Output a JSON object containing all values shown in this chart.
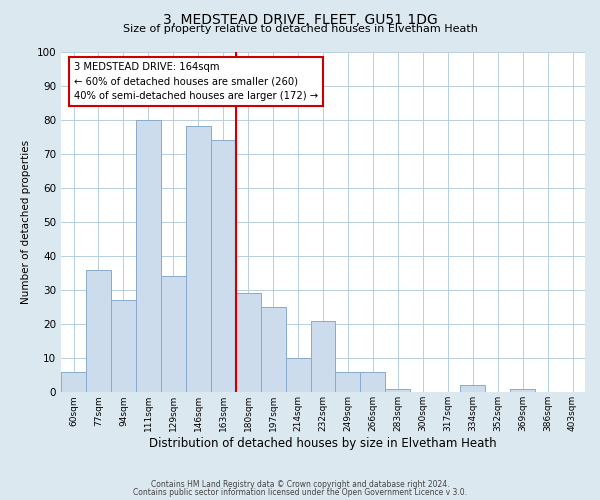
{
  "title": "3, MEDSTEAD DRIVE, FLEET, GU51 1DG",
  "subtitle": "Size of property relative to detached houses in Elvetham Heath",
  "xlabel": "Distribution of detached houses by size in Elvetham Heath",
  "ylabel": "Number of detached properties",
  "footer_line1": "Contains HM Land Registry data © Crown copyright and database right 2024.",
  "footer_line2": "Contains public sector information licensed under the Open Government Licence v 3.0.",
  "bin_labels": [
    "60sqm",
    "77sqm",
    "94sqm",
    "111sqm",
    "129sqm",
    "146sqm",
    "163sqm",
    "180sqm",
    "197sqm",
    "214sqm",
    "232sqm",
    "249sqm",
    "266sqm",
    "283sqm",
    "300sqm",
    "317sqm",
    "334sqm",
    "352sqm",
    "369sqm",
    "386sqm",
    "403sqm"
  ],
  "bar_heights": [
    6,
    36,
    27,
    80,
    34,
    78,
    74,
    29,
    25,
    10,
    21,
    6,
    6,
    1,
    0,
    0,
    2,
    0,
    1,
    0,
    0
  ],
  "bar_color": "#ccdcec",
  "bar_edge_color": "#88aacc",
  "property_line_color": "#cc0000",
  "property_line_label": "163sqm",
  "annotation_title": "3 MEDSTEAD DRIVE: 164sqm",
  "annotation_line1": "← 60% of detached houses are smaller (260)",
  "annotation_line2": "40% of semi-detached houses are larger (172) →",
  "annotation_box_facecolor": "#ffffff",
  "annotation_box_edgecolor": "#cc0000",
  "ylim": [
    0,
    100
  ],
  "yticks": [
    0,
    10,
    20,
    30,
    40,
    50,
    60,
    70,
    80,
    90,
    100
  ],
  "bg_color": "#dce8f0",
  "plot_bg_color": "#ffffff",
  "grid_color": "#b8cfe0"
}
